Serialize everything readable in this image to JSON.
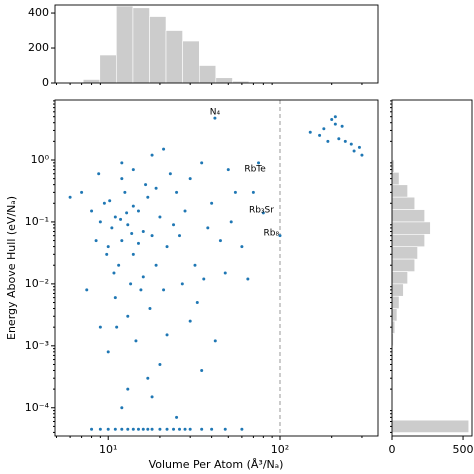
{
  "chart_data": [
    {
      "type": "scatter",
      "xlabel": "Volume Per Atom (Å³/Nₐ)",
      "ylabel": "Energy Above Hull (eV/Nₐ)",
      "xlog": true,
      "ylog": true,
      "color": "#1f77b4",
      "xlim": [
        4.9,
        372
      ],
      "ylim": [
        3.5e-05,
        9.3
      ],
      "xticks": [
        {
          "value": 10,
          "label": "10¹"
        },
        {
          "value": 100,
          "label": "10²"
        }
      ],
      "yticks": [
        {
          "value": 0.0001,
          "label": "10⁻⁴"
        },
        {
          "value": 0.001,
          "label": "10⁻³"
        },
        {
          "value": 0.01,
          "label": "10⁻²"
        },
        {
          "value": 0.1,
          "label": "10⁻¹"
        },
        {
          "value": 1,
          "label": "10⁰"
        }
      ],
      "vline": 100,
      "x": [
        10.5,
        11,
        12,
        13,
        9.5,
        14,
        15,
        11.5,
        12.5,
        16,
        10,
        13.5,
        17,
        18,
        9,
        11,
        12,
        14,
        19,
        20,
        22,
        25,
        8.5,
        10.8,
        15.5,
        13,
        16.5,
        21,
        24,
        28,
        30,
        35,
        12,
        18,
        26,
        32,
        40,
        45,
        11.2,
        14.5,
        17.5,
        20,
        9.8,
        12.8,
        10.2,
        15,
        13.7,
        11.8,
        16,
        19,
        23,
        27,
        33,
        38,
        50,
        55,
        60,
        52,
        70,
        8,
        7,
        6,
        7.5,
        9,
        10,
        8.8,
        14,
        21,
        17,
        13,
        22,
        30,
        42,
        36,
        48,
        65,
        12,
        18,
        25,
        35,
        41.8,
        75,
        80,
        100,
        170,
        180,
        200,
        210,
        220,
        240,
        260,
        290,
        300,
        150,
        230,
        190,
        270,
        210,
        10,
        11,
        12,
        13,
        14,
        15,
        16,
        17,
        18,
        20,
        22,
        24,
        26,
        28,
        30,
        35,
        40,
        48,
        60,
        8,
        9
      ],
      "y": [
        0.08,
        0.12,
        0.05,
        0.09,
        0.2,
        0.03,
        0.15,
        0.02,
        0.3,
        0.07,
        0.04,
        0.01,
        0.25,
        0.06,
        0.1,
        0.006,
        0.5,
        0.18,
        0.02,
        0.12,
        0.04,
        0.3,
        0.05,
        0.015,
        0.008,
        0.003,
        0.4,
        0.008,
        0.09,
        0.15,
        0.5,
        0.9,
        0.9,
        1.2,
        0.06,
        0.02,
        0.2,
        0.05,
        0.002,
        0.0012,
        0.004,
        0.0005,
        0.03,
        0.14,
        0.22,
        0.045,
        0.065,
        0.11,
        0.013,
        0.35,
        0.6,
        0.01,
        0.005,
        0.08,
        0.7,
        0.3,
        0.04,
        0.1,
        0.3,
        0.15,
        0.3,
        0.25,
        0.008,
        0.002,
        0.0008,
        0.6,
        0.7,
        1.5,
        0.0003,
        0.0002,
        0.0015,
        0.0025,
        0.0012,
        0.012,
        0.015,
        0.012,
        0.0001,
        0.00015,
        7e-05,
        0.0004,
        4.75,
        0.9,
        0.14,
        0.06,
        2.5,
        3.2,
        4.5,
        3.8,
        2.2,
        2.0,
        1.8,
        1.6,
        1.2,
        2.8,
        3.5,
        2.0,
        1.4,
        5.0,
        4.5e-05,
        4.5e-05,
        4.5e-05,
        4.5e-05,
        4.5e-05,
        4.5e-05,
        4.5e-05,
        4.5e-05,
        4.5e-05,
        4.5e-05,
        4.5e-05,
        4.5e-05,
        4.5e-05,
        4.5e-05,
        4.5e-05,
        4.5e-05,
        4.5e-05,
        4.5e-05,
        4.5e-05,
        4.5e-05,
        4.5e-05
      ],
      "annotations": [
        {
          "text": "N₄",
          "x": 41.8,
          "y": 5.95
        },
        {
          "text": "RbTe",
          "x": 71.6,
          "y": 0.716
        },
        {
          "text": "Rb₃Sr",
          "x": 78,
          "y": 0.156
        },
        {
          "text": "Rb₈",
          "x": 89,
          "y": 0.066
        }
      ]
    },
    {
      "type": "histogram",
      "color": "#cccccc",
      "xlog": true,
      "bins": [
        7.15,
        8.93,
        11.15,
        13.93,
        17.4,
        21.7,
        27.1,
        33.9,
        42.3,
        52.9,
        66.0,
        82.5,
        103
      ],
      "counts": [
        20,
        160,
        440,
        430,
        380,
        300,
        240,
        100,
        30,
        10,
        5,
        3
      ],
      "xlim": [
        4.9,
        372
      ],
      "ylim": [
        0,
        446
      ],
      "yticks": [
        0,
        200,
        400
      ]
    },
    {
      "type": "histogram-horizontal",
      "color": "#cccccc",
      "ylog": true,
      "bins": [
        1.585,
        1,
        0.631,
        0.398,
        0.251,
        0.158,
        0.1,
        0.0631,
        0.0398,
        0.0251,
        0.0158,
        0.01,
        0.00631,
        0.00398,
        0.00251,
        0.00158,
        0.001,
        0.000631,
        0.000398,
        0.000251,
        0.000158,
        0.0001,
        6.31e-05,
        3.98e-05
      ],
      "counts": [
        5,
        15,
        50,
        110,
        160,
        230,
        270,
        230,
        180,
        160,
        110,
        80,
        50,
        35,
        20,
        10,
        5,
        3,
        0,
        0,
        0,
        0,
        540
      ],
      "xlim": [
        0,
        563
      ],
      "xticks": [
        0,
        500
      ],
      "ylim": [
        3.5e-05,
        9.3
      ]
    }
  ]
}
